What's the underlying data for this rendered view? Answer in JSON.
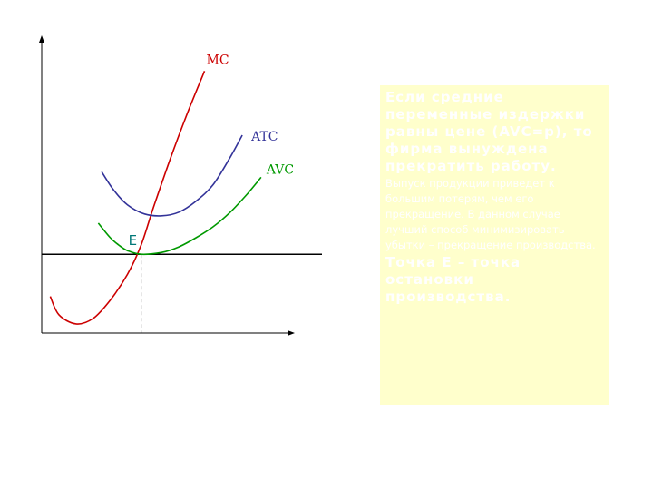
{
  "chart_data": {
    "type": "line",
    "series": [
      {
        "name": "MC",
        "color": "#cc0000",
        "points": [
          [
            0.5,
            2.0
          ],
          [
            1.0,
            1.0
          ],
          [
            2.0,
            0.5
          ],
          [
            3.0,
            0.8
          ],
          [
            4.0,
            1.8
          ],
          [
            5.0,
            3.2
          ],
          [
            5.8,
            4.8
          ],
          [
            6.5,
            6.8
          ],
          [
            7.5,
            9.5
          ],
          [
            8.5,
            12.0
          ],
          [
            9.5,
            14.3
          ]
        ]
      },
      {
        "name": "ATC",
        "color": "#333399",
        "points": [
          [
            3.5,
            8.8
          ],
          [
            4.2,
            7.8
          ],
          [
            5.0,
            7.0
          ],
          [
            6.0,
            6.5
          ],
          [
            7.0,
            6.4
          ],
          [
            8.0,
            6.6
          ],
          [
            9.0,
            7.2
          ],
          [
            10.0,
            8.1
          ],
          [
            11.0,
            9.6
          ],
          [
            11.7,
            10.8
          ]
        ]
      },
      {
        "name": "AVC",
        "color": "#009900",
        "points": [
          [
            3.3,
            6.0
          ],
          [
            4.0,
            5.2
          ],
          [
            4.5,
            4.8
          ],
          [
            5.0,
            4.5
          ],
          [
            5.8,
            4.3
          ],
          [
            7.0,
            4.4
          ],
          [
            8.0,
            4.7
          ],
          [
            9.0,
            5.2
          ],
          [
            10.0,
            5.8
          ],
          [
            11.0,
            6.6
          ],
          [
            12.0,
            7.6
          ],
          [
            12.8,
            8.5
          ]
        ]
      }
    ],
    "price_level": 4.3,
    "point_E": {
      "label": "E",
      "x": 5.8,
      "y": 4.3
    },
    "xlim": [
      0,
      14.5
    ],
    "ylim": [
      0,
      16
    ],
    "xlabel": "",
    "ylabel": "",
    "grid": false,
    "legend": "none"
  },
  "textbox": {
    "para1": "Если средние переменные издержки равны цене (AVC=p), то фирма вынуждена прекратить работу.",
    "para2": "Выпуск продукции приведет к большим потерям, чем его прекращение. В данном случае лучший способ минимизировать убытки – прекращение производства.",
    "para3": "Точка Е – точка остановки производства."
  }
}
